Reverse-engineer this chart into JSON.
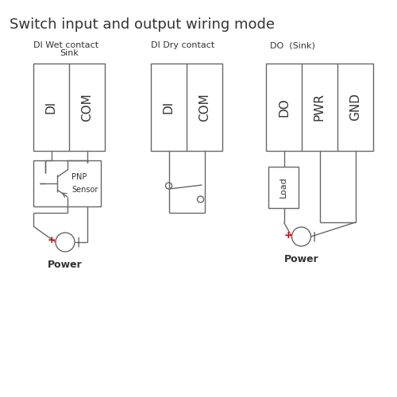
{
  "title": "Switch input and output wiring mode",
  "title_fontsize": 13,
  "bg_color": "#ffffff",
  "line_color": "#666666",
  "text_color": "#333333",
  "red_color": "#dd0000",
  "fig_width": 5.0,
  "fig_height": 5.0,
  "dpi": 100,
  "section1_label": "DI Wet contact",
  "section1_sublabel": "Sink",
  "section2_label": "DI Dry contact",
  "section3_label": "DO  (Sink)",
  "connector1_labels": [
    "DI",
    "COM"
  ],
  "connector2_labels": [
    "DI",
    "COM"
  ],
  "connector3_labels": [
    "DO",
    "PWR",
    "GND"
  ],
  "pnp_label": "PNP",
  "sensor_label": "Sensor",
  "load_label": "Load",
  "power_label": "Power"
}
